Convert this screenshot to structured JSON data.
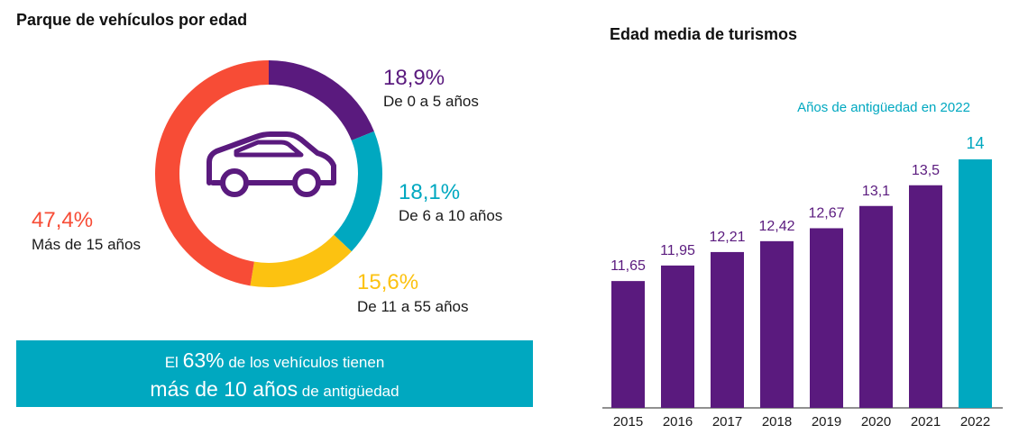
{
  "left": {
    "title": "Parque de vehículos por edad",
    "segments": [
      {
        "pct": "18,9%",
        "label": "De 0 a 5 años",
        "value": 18.9,
        "color": "#5a1a7e"
      },
      {
        "pct": "18,1%",
        "label": "De 6 a 10 años",
        "value": 18.1,
        "color": "#00a8c0"
      },
      {
        "pct": "15,6%",
        "label": "De 11 a 55 años",
        "value": 15.6,
        "color": "#fcc211"
      },
      {
        "pct": "47,4%",
        "label": "Más de 15 años",
        "value": 47.4,
        "color": "#f74c36"
      }
    ],
    "icon": "car-icon",
    "banner": {
      "l1_pre": "El ",
      "l1_big": "63%",
      "l1_post": " de los vehículos tienen",
      "l2_big": "más de 10 años",
      "l2_post": " de antigüedad",
      "color": "#00a8c0"
    }
  },
  "right": {
    "title": "Edad media de turismos",
    "subtitle": "Años de antigüedad en 2022"
  },
  "chart_data": [
    {
      "type": "pie",
      "title": "Parque de vehículos por edad",
      "categories": [
        "De 0 a 5 años",
        "De 6 a 10 años",
        "De 11 a 55 años",
        "Más de 15 años"
      ],
      "values": [
        18.9,
        18.1,
        15.6,
        47.4
      ]
    },
    {
      "type": "bar",
      "title": "Edad media de turismos",
      "subtitle": "Años de antigüedad en 2022",
      "categories": [
        "2015",
        "2016",
        "2017",
        "2018",
        "2019",
        "2020",
        "2021",
        "2022"
      ],
      "values": [
        11.65,
        11.95,
        12.21,
        12.42,
        12.67,
        13.1,
        13.5,
        14
      ],
      "value_labels": [
        "11,65",
        "11,95",
        "12,21",
        "12,42",
        "12,67",
        "13,1",
        "13,5",
        "14"
      ],
      "colors": {
        "default": "#5a1a7e",
        "highlight": "#00a8c0"
      },
      "highlight": "2022",
      "xlabel": "",
      "ylabel": ""
    }
  ]
}
